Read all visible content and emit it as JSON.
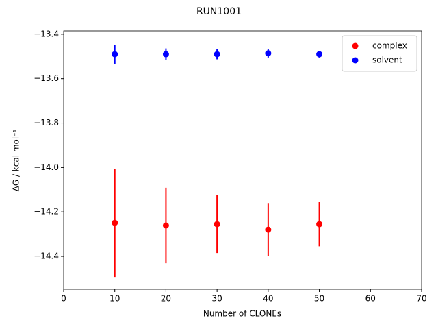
{
  "chart_data": {
    "type": "errorbar",
    "title": "RUN1001",
    "xlabel": "Number of CLONEs",
    "ylabel": "ΔG / kcal mol⁻¹",
    "x": [
      10,
      20,
      30,
      40,
      50
    ],
    "series": [
      {
        "name": "complex",
        "color": "#ff0000",
        "values": [
          -14.249,
          -14.261,
          -14.255,
          -14.28,
          -14.255
        ],
        "errors": [
          0.244,
          0.17,
          0.13,
          0.12,
          0.1
        ]
      },
      {
        "name": "solvent",
        "color": "#0000ff",
        "values": [
          -13.49,
          -13.49,
          -13.49,
          -13.486,
          -13.49
        ],
        "errors": [
          0.043,
          0.026,
          0.023,
          0.019,
          0.015
        ]
      }
    ],
    "xlim": [
      0,
      70
    ],
    "xticks": [
      0,
      10,
      20,
      30,
      40,
      50,
      60,
      70
    ],
    "ylim": [
      -14.548,
      -13.385
    ],
    "yticks": [
      {
        "value": -14.4,
        "label": "−14.4"
      },
      {
        "value": -14.2,
        "label": "−14.2"
      },
      {
        "value": -14.0,
        "label": "−14.0"
      },
      {
        "value": -13.8,
        "label": "−13.8"
      },
      {
        "value": -13.6,
        "label": "−13.6"
      },
      {
        "value": -13.4,
        "label": "−13.4"
      }
    ],
    "legend": "upper right",
    "grid": false
  }
}
